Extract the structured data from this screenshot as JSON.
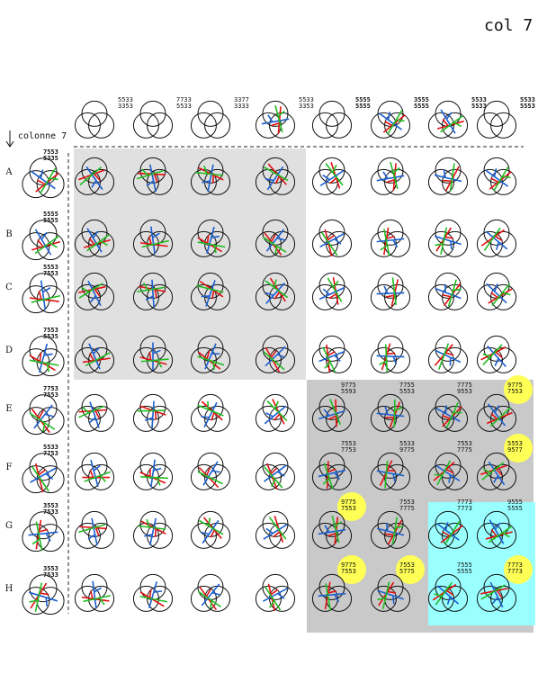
{
  "page_title": "col 7",
  "column_label": "colonne 7",
  "row_labels": [
    "A",
    "B",
    "C",
    "D",
    "E",
    "F",
    "G",
    "H"
  ],
  "top_codes": [
    {
      "l1": "5533",
      "l2": "3353"
    },
    {
      "l1": "7733",
      "l2": "5533"
    },
    {
      "l1": "3377",
      "l2": "3333"
    },
    {
      "l1": "5533",
      "l2": "3353"
    },
    {
      "l1": "5555",
      "l2": "5555"
    },
    {
      "l1": "3555",
      "l2": "5555"
    },
    {
      "l1": "5533",
      "l2": "5533"
    },
    {
      "l1": "5533",
      "l2": "5553"
    }
  ],
  "row_codes": [
    {
      "l1": "7553",
      "l2": "5335"
    },
    {
      "l1": "5555",
      "l2": "5555"
    },
    {
      "l1": "5553",
      "l2": "7553"
    },
    {
      "l1": "7553",
      "l2": "5535"
    },
    {
      "l1": "7753",
      "l2": "7553"
    },
    {
      "l1": "5533",
      "l2": "7753"
    },
    {
      "l1": "3553",
      "l2": "7533"
    },
    {
      "l1": "3553",
      "l2": "7533"
    }
  ],
  "region_codes": {
    "E": [
      {
        "l1": "9775",
        "l2": "5593"
      },
      {
        "l1": "7755",
        "l2": "5553"
      },
      {
        "l1": "7775",
        "l2": "9553"
      },
      {
        "l1": "9775",
        "l2": "7553",
        "hl": true
      }
    ],
    "F": [
      {
        "l1": "7553",
        "l2": "7753"
      },
      {
        "l1": "5533",
        "l2": "9775"
      },
      {
        "l1": "7553",
        "l2": "7775"
      },
      {
        "l1": "5553",
        "l2": "9577",
        "hl": true
      }
    ],
    "G": [
      {
        "l1": "9775",
        "l2": "7553",
        "hl": true
      },
      {
        "l1": "7553",
        "l2": "7775"
      },
      {
        "l1": "7773",
        "l2": "7773"
      },
      {
        "l1": "9555",
        "l2": "5555"
      }
    ],
    "H": [
      {
        "l1": "9775",
        "l2": "7553",
        "hl": true
      },
      {
        "l1": "7553",
        "l2": "5775",
        "hl": true
      },
      {
        "l1": "7555",
        "l2": "5555"
      },
      {
        "l1": "7773",
        "l2": "7773",
        "hl": true
      }
    ]
  },
  "colors": {
    "gray_left": "#e0e0e0",
    "gray_right": "#c9c9c9",
    "cyan": "#99ffff",
    "yellow": "#ffff55",
    "red": "#e01010",
    "blue": "#1a5fd0",
    "green": "#22bb22"
  }
}
